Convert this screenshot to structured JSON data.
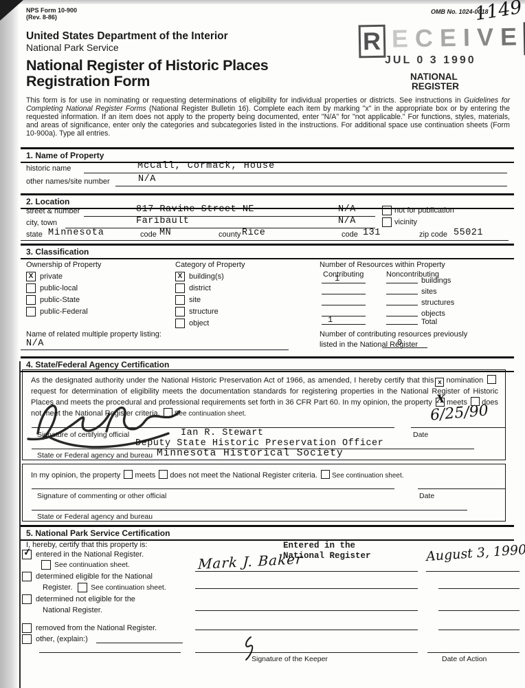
{
  "page": {
    "form_no": "NPS Form 10-900",
    "form_rev": "(Rev. 8-86)",
    "omb_no": "OMB No. 1024-0018",
    "handwritten_no": "1149",
    "received_stamp": "RECEIVED",
    "received_date": "JUL 0 3 1990",
    "register_stamp_line1": "NATIONAL",
    "register_stamp_line2": "REGISTER",
    "department": "United States Department of the Interior",
    "service": "National Park Service",
    "title_line1": "National Register of Historic Places",
    "title_line2": "Registration Form",
    "intro_before": "This form is for use in nominating or requesting determinations of eligibility for individual properties or districts. See instructions in ",
    "intro_italic": "Guidelines for Completing National Register Forms",
    "intro_after": " (National Register Bulletin 16). Complete each item by marking \"x\" in the appropriate box or by entering the requested information. If an item does not apply to the property being documented, enter \"N/A\" for \"not applicable.\" For functions, styles, materials, and areas of significance, enter only the categories and subcategories listed in the instructions. For additional space use continuation sheets (Form 10-900a). Type all entries."
  },
  "section1": {
    "heading": "1. Name of Property",
    "historic_name_label": "historic name",
    "historic_name_value": "McCall, Cormack, House",
    "other_names_label": "other names/site number",
    "other_names_value": "N/A"
  },
  "section2": {
    "heading": "2. Location",
    "street_label": "street & number",
    "street_value": "817 Ravine Street NE",
    "street_na": "N/A",
    "not_for_publication_label": "not for publication",
    "city_label": "city, town",
    "city_value": "Faribault",
    "city_na": "N/A",
    "vicinity_label": "vicinity",
    "state_label": "state",
    "state_value": "Minnesota",
    "state_code_label": "code",
    "state_code_value": "MN",
    "county_label": "county",
    "county_value": "Rice",
    "county_code_label": "code",
    "county_code_value": "131",
    "zip_label": "zip code",
    "zip_value": "55021"
  },
  "section3": {
    "heading": "3. Classification",
    "ownership_label": "Ownership of Property",
    "ownership_items": [
      {
        "label": "private",
        "mark": "X"
      },
      {
        "label": "public-local",
        "mark": ""
      },
      {
        "label": "public-State",
        "mark": ""
      },
      {
        "label": "public-Federal",
        "mark": ""
      }
    ],
    "category_label": "Category of Property",
    "category_items": [
      {
        "label": "building(s)",
        "mark": "X"
      },
      {
        "label": "district",
        "mark": ""
      },
      {
        "label": "site",
        "mark": ""
      },
      {
        "label": "structure",
        "mark": ""
      },
      {
        "label": "object",
        "mark": ""
      }
    ],
    "resources_label": "Number of Resources within Property",
    "contributing_label": "Contributing",
    "noncontributing_label": "Noncontributing",
    "resource_rows": [
      {
        "contributing": "1",
        "noncontributing": "",
        "label": "buildings"
      },
      {
        "contributing": "",
        "noncontributing": "",
        "label": "sites"
      },
      {
        "contributing": "",
        "noncontributing": "",
        "label": "structures"
      },
      {
        "contributing": "",
        "noncontributing": "",
        "label": "objects"
      },
      {
        "contributing": "1",
        "noncontributing": "",
        "label": "Total"
      }
    ],
    "related_label": "Name of related multiple property listing:",
    "related_value": "N/A",
    "previously_listed_line1": "Number of contributing resources previously",
    "previously_listed_line2": "listed in the National Register",
    "previously_listed_value": "0"
  },
  "section4": {
    "heading": "4. State/Federal Agency Certification",
    "cert_text_1": "As the designated authority under the National Historic Preservation Act of 1966, as amended, I hereby certify that this",
    "nomination_mark": "x",
    "nomination_label": "nomination",
    "request_label": "request for determination of eligibility meets the documentation standards for registering properties in the National Register of Historic Places and meets the procedural and professional requirements set forth in 36 CFR Part 60. In my opinion, the property",
    "meets_mark": "X",
    "meets_label": "meets",
    "not_meet_label": "does not meet the National Register criteria.",
    "continuation_label": "See continuation sheet.",
    "certifying_sig_label": "Signature of certifying official",
    "certifying_name": "Ian R. Stewart",
    "certifying_title": "Deputy State Historic Preservation Officer",
    "date_label": "Date",
    "date_value": "6/25/90",
    "agency_label": "State or Federal agency and bureau",
    "agency_value": "Minnesota Historical Society",
    "opinion_text": "In my opinion, the property",
    "opinion_meets": "meets",
    "opinion_not_meet": "does not meet the National Register criteria.",
    "opinion_continuation": "See continuation sheet.",
    "commenting_sig_label": "Signature of commenting or other official",
    "commenting_date_label": "Date",
    "commenting_agency_label": "State or Federal agency and bureau"
  },
  "section5": {
    "heading": "5. National Park Service Certification",
    "intro": "I, hereby, certify that this property is:",
    "entered_mark": "✓",
    "entered_label": "entered in the National Register.",
    "see_continuation_1": "See continuation sheet.",
    "determined_eligible_line1": "determined eligible for the National",
    "determined_eligible_line2": "Register.",
    "see_continuation_2": "See continuation sheet.",
    "determined_not_line1": "determined not eligible for the",
    "determined_not_line2": "National Register.",
    "removed_label": "removed from the National Register.",
    "other_label": "other, (explain:)",
    "stamp_line1": "Entered in the",
    "stamp_line2": "National Register",
    "keeper_signature": "Mark J. Baker",
    "action_date_value": "August 3, 1990",
    "keeper_label": "Signature of the Keeper",
    "action_label": "Date of Action"
  }
}
